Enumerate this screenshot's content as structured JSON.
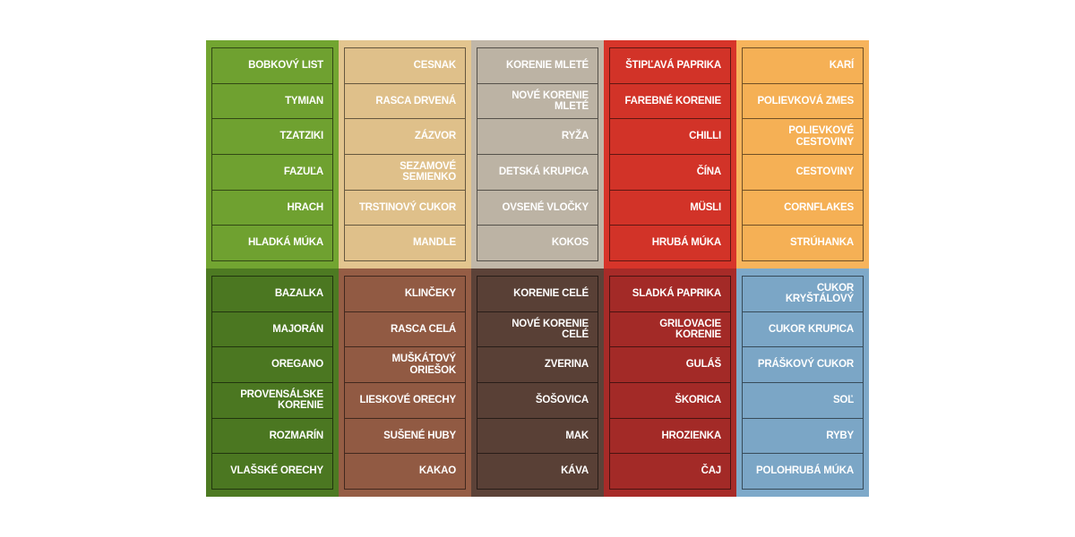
{
  "rows": [
    {
      "columns": [
        {
          "bg": "#72a531",
          "cell": "#6fa130",
          "items": [
            "BOBKOVÝ LIST",
            "TYMIAN",
            "TZATZIKI",
            "FAZUĽA",
            "HRACH",
            "HLADKÁ MÚKA"
          ]
        },
        {
          "bg": "#e3c58f",
          "cell": "#dfc08a",
          "items": [
            "CESNAK",
            "RASCA DRVENÁ",
            "ZÁZVOR",
            "SEZAMOVÉ SEMIENKO",
            "TRSTINOVÝ CUKOR",
            "MANDLE"
          ]
        },
        {
          "bg": "#c1b7a8",
          "cell": "#bcb3a4",
          "items": [
            "KORENIE MLETÉ",
            "NOVÉ KORENIE MLETÉ",
            "RYŽA",
            "DETSKÁ KRUPICA",
            "OVSENÉ VLOČKY",
            "KOKOS"
          ]
        },
        {
          "bg": "#d7352a",
          "cell": "#d23328",
          "items": [
            "ŠTIPĽAVÁ PAPRIKA",
            "FAREBNÉ KORENIE",
            "CHILLI",
            "ČÍNA",
            "MÜSLI",
            "HRUBÁ MÚKA"
          ]
        },
        {
          "bg": "#f7b45c",
          "cell": "#f5b055",
          "items": [
            "KARÍ",
            "POLIEVKOVÁ ZMES",
            "POLIEVKOVÉ CESTOVINY",
            "CESTOVINY",
            "CORNFLAKES",
            "STRÚHANKA"
          ]
        }
      ]
    },
    {
      "columns": [
        {
          "bg": "#4d7a22",
          "cell": "#4b7721",
          "items": [
            "BAZALKA",
            "MAJORÁN",
            "OREGANO",
            "PROVENSÁLSKE KORENIE",
            "ROZMARÍN",
            "VLAŠSKÉ ORECHY"
          ]
        },
        {
          "bg": "#955d45",
          "cell": "#915a43",
          "items": [
            "KLINČEKY",
            "RASCA CELÁ",
            "MUŠKÁTOVÝ ORIEŠOK",
            "LIESKOVÉ ORECHY",
            "SUŠENÉ HUBY",
            "KAKAO"
          ]
        },
        {
          "bg": "#5c4238",
          "cell": "#594036",
          "items": [
            "KORENIE CELÉ",
            "NOVÉ KORENIE CELÉ",
            "ZVERINA",
            "ŠOŠOVICA",
            "MAK",
            "KÁVA"
          ]
        },
        {
          "bg": "#a72b28",
          "cell": "#a32a27",
          "items": [
            "SLADKÁ PAPRIKA",
            "GRILOVACIE KORENIE",
            "GULÁŠ",
            "ŠKORICA",
            "HROZIENKA",
            "ČAJ"
          ]
        },
        {
          "bg": "#7ea9c9",
          "cell": "#7ba6c6",
          "items": [
            "CUKOR KRYŠTÁLOVÝ",
            "CUKOR KRUPICA",
            "PRÁŠKOVÝ CUKOR",
            "SOĽ",
            "RYBY",
            "POLOHRUBÁ MÚKA"
          ]
        }
      ]
    }
  ]
}
